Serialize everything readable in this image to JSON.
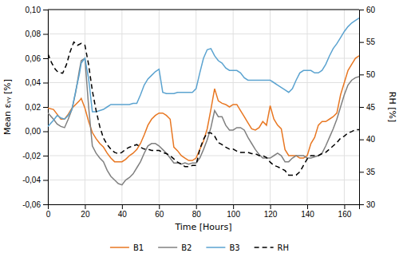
{
  "chart_data": {
    "type": "line",
    "x_label": "Time [Hours]",
    "y_label": "Mean εᵧᵧ [%]",
    "y2_label": "RH [%]",
    "xlim": [
      0,
      168
    ],
    "ylim": [
      -0.06,
      0.1
    ],
    "y2lim": [
      30,
      60
    ],
    "xticks": [
      0,
      20,
      40,
      60,
      80,
      100,
      120,
      140,
      160
    ],
    "yticks": [
      {
        "value": -0.06,
        "label": "-0,06"
      },
      {
        "value": -0.04,
        "label": "-0,04"
      },
      {
        "value": -0.02,
        "label": "-0,02"
      },
      {
        "value": 0,
        "label": "0,00"
      },
      {
        "value": 0.02,
        "label": "0,02"
      },
      {
        "value": 0.04,
        "label": "0,04"
      },
      {
        "value": 0.06,
        "label": "0,06"
      },
      {
        "value": 0.08,
        "label": "0,08"
      },
      {
        "value": 0.1,
        "label": "0,10"
      }
    ],
    "y2ticks": [
      30,
      35,
      40,
      45,
      50,
      55,
      60
    ],
    "grid": true,
    "legend": "bottom",
    "series": [
      {
        "name": "B1",
        "color": "#E87722",
        "axis": "y",
        "line_style": "solid",
        "x": [
          0,
          3,
          5,
          7,
          9,
          11,
          13,
          15,
          17,
          18,
          20,
          22,
          24,
          26,
          28,
          30,
          32,
          34,
          36,
          38,
          40,
          42,
          44,
          46,
          48,
          50,
          52,
          54,
          56,
          58,
          60,
          62,
          64,
          66,
          68,
          70,
          72,
          74,
          76,
          78,
          80,
          82,
          84,
          86,
          88,
          90,
          92,
          94,
          96,
          98,
          100,
          102,
          104,
          106,
          108,
          110,
          112,
          114,
          116,
          118,
          120,
          122,
          124,
          126,
          128,
          130,
          132,
          134,
          136,
          138,
          140,
          142,
          144,
          146,
          148,
          150,
          152,
          154,
          156,
          158,
          160,
          162,
          164,
          166,
          168
        ],
        "values": [
          0.019,
          0.018,
          0.014,
          0.01,
          0.01,
          0.014,
          0.019,
          0.022,
          0.025,
          0.027,
          0.019,
          0.008,
          -0.001,
          -0.006,
          -0.01,
          -0.013,
          -0.018,
          -0.022,
          -0.025,
          -0.025,
          -0.025,
          -0.023,
          -0.02,
          -0.018,
          -0.015,
          -0.01,
          -0.003,
          0.005,
          0.01,
          0.013,
          0.015,
          0.015,
          0.013,
          0.01,
          -0.013,
          -0.016,
          -0.02,
          -0.022,
          -0.024,
          -0.024,
          -0.022,
          -0.015,
          -0.008,
          0.002,
          0.018,
          0.035,
          0.025,
          0.023,
          0.022,
          0.02,
          0.022,
          0.022,
          0.017,
          0.012,
          0.007,
          0.002,
          0.001,
          0.003,
          0.008,
          0.005,
          0.021,
          0.01,
          0.005,
          0.002,
          -0.015,
          -0.02,
          -0.02,
          -0.02,
          -0.022,
          -0.022,
          -0.02,
          -0.01,
          -0.005,
          0.005,
          0.008,
          0.008,
          0.01,
          0.012,
          0.015,
          0.03,
          0.04,
          0.05,
          0.055,
          0.06,
          0.062
        ]
      },
      {
        "name": "B2",
        "color": "#808080",
        "axis": "y",
        "line_style": "solid",
        "x": [
          0,
          3,
          5,
          7,
          9,
          11,
          13,
          15,
          17,
          18,
          20,
          22,
          24,
          26,
          28,
          30,
          32,
          34,
          36,
          38,
          40,
          42,
          44,
          46,
          48,
          50,
          52,
          54,
          56,
          58,
          60,
          62,
          64,
          66,
          68,
          70,
          72,
          74,
          76,
          78,
          80,
          82,
          84,
          86,
          88,
          90,
          92,
          94,
          96,
          98,
          100,
          102,
          104,
          106,
          108,
          110,
          112,
          114,
          116,
          118,
          120,
          122,
          124,
          126,
          128,
          130,
          132,
          134,
          136,
          138,
          140,
          142,
          144,
          146,
          148,
          150,
          152,
          154,
          156,
          158,
          160,
          162,
          164,
          166,
          168
        ],
        "values": [
          0.015,
          0.01,
          0.006,
          0.004,
          0.003,
          0.01,
          0.018,
          0.032,
          0.05,
          0.058,
          0.06,
          0.02,
          -0.012,
          -0.018,
          -0.022,
          -0.025,
          -0.032,
          -0.037,
          -0.04,
          -0.043,
          -0.044,
          -0.04,
          -0.038,
          -0.035,
          -0.03,
          -0.025,
          -0.018,
          -0.012,
          -0.01,
          -0.01,
          -0.012,
          -0.015,
          -0.018,
          -0.022,
          -0.026,
          -0.026,
          -0.027,
          -0.026,
          -0.027,
          -0.026,
          -0.026,
          -0.022,
          -0.015,
          -0.007,
          0.003,
          0.017,
          0.012,
          0.012,
          0.005,
          0.001,
          0.001,
          0.003,
          0.003,
          0.001,
          -0.005,
          -0.01,
          -0.015,
          -0.019,
          -0.022,
          -0.022,
          -0.022,
          -0.02,
          -0.018,
          -0.02,
          -0.025,
          -0.025,
          -0.022,
          -0.02,
          -0.02,
          -0.02,
          -0.022,
          -0.022,
          -0.021,
          -0.02,
          -0.018,
          -0.012,
          -0.005,
          0.002,
          0.01,
          0.02,
          0.03,
          0.038,
          0.042,
          0.044,
          0.045
        ]
      },
      {
        "name": "B3",
        "color": "#5BA3D0",
        "axis": "y",
        "line_style": "solid",
        "x": [
          0,
          3,
          5,
          7,
          9,
          11,
          13,
          15,
          17,
          18,
          20,
          22,
          24,
          26,
          28,
          30,
          32,
          34,
          36,
          38,
          40,
          42,
          44,
          46,
          48,
          50,
          52,
          54,
          56,
          58,
          60,
          62,
          64,
          66,
          68,
          70,
          72,
          74,
          76,
          78,
          80,
          82,
          84,
          86,
          88,
          90,
          92,
          94,
          96,
          98,
          100,
          102,
          104,
          106,
          108,
          110,
          112,
          114,
          116,
          118,
          120,
          122,
          124,
          126,
          128,
          130,
          132,
          134,
          136,
          138,
          140,
          142,
          144,
          146,
          148,
          150,
          152,
          154,
          156,
          158,
          160,
          162,
          164,
          166,
          168
        ],
        "values": [
          0.004,
          0.009,
          0.013,
          0.011,
          0.01,
          0.013,
          0.018,
          0.033,
          0.047,
          0.056,
          0.06,
          0.043,
          0.016,
          0.016,
          0.017,
          0.018,
          0.02,
          0.022,
          0.022,
          0.022,
          0.022,
          0.022,
          0.022,
          0.023,
          0.023,
          0.03,
          0.038,
          0.043,
          0.046,
          0.049,
          0.051,
          0.032,
          0.031,
          0.031,
          0.031,
          0.032,
          0.032,
          0.032,
          0.032,
          0.032,
          0.035,
          0.048,
          0.06,
          0.067,
          0.068,
          0.062,
          0.058,
          0.056,
          0.052,
          0.05,
          0.05,
          0.05,
          0.048,
          0.044,
          0.042,
          0.042,
          0.042,
          0.042,
          0.042,
          0.042,
          0.042,
          0.04,
          0.038,
          0.036,
          0.034,
          0.032,
          0.035,
          0.042,
          0.048,
          0.05,
          0.05,
          0.05,
          0.048,
          0.048,
          0.05,
          0.055,
          0.062,
          0.068,
          0.072,
          0.077,
          0.082,
          0.086,
          0.089,
          0.091,
          0.093
        ]
      },
      {
        "name": "RH",
        "color": "#000000",
        "axis": "y2",
        "line_style": "dashed",
        "x": [
          0,
          2,
          4,
          5,
          6,
          8,
          10,
          12,
          14,
          16,
          18,
          20,
          22,
          24,
          26,
          28,
          30,
          32,
          34,
          36,
          38,
          40,
          42,
          44,
          46,
          48,
          50,
          52,
          54,
          56,
          58,
          60,
          62,
          64,
          66,
          68,
          70,
          72,
          74,
          76,
          78,
          80,
          82,
          84,
          86,
          88,
          90,
          92,
          94,
          96,
          98,
          100,
          102,
          104,
          106,
          108,
          110,
          112,
          114,
          116,
          118,
          120,
          122,
          124,
          126,
          128,
          130,
          132,
          134,
          136,
          138,
          140,
          142,
          144,
          146,
          148,
          150,
          152,
          154,
          156,
          158,
          160,
          162,
          164,
          166,
          168
        ],
        "values": [
          53.2,
          51.8,
          50.8,
          50.5,
          50.3,
          50.2,
          51.5,
          53.5,
          55.0,
          54.5,
          54.8,
          54.5,
          51.5,
          47.5,
          44.5,
          42.0,
          40.2,
          39.2,
          38.5,
          38.0,
          37.8,
          38.0,
          38.5,
          38.8,
          39.0,
          39.2,
          38.8,
          38.5,
          38.5,
          38.3,
          38.3,
          38.3,
          38.0,
          37.8,
          37.5,
          37.0,
          36.5,
          36.2,
          35.8,
          35.8,
          36.0,
          36.0,
          38.5,
          40.0,
          41.0,
          41.0,
          40.5,
          39.5,
          39.2,
          38.8,
          38.5,
          38.5,
          38.2,
          38.0,
          38.0,
          38.0,
          37.8,
          37.8,
          37.5,
          37.5,
          37.2,
          36.5,
          36.0,
          35.8,
          35.5,
          35.2,
          34.5,
          34.5,
          34.5,
          35.0,
          36.0,
          37.0,
          37.5,
          37.5,
          37.5,
          37.8,
          38.0,
          38.5,
          39.0,
          39.5,
          40.2,
          40.5,
          41.0,
          41.2,
          41.5,
          41.5
        ]
      }
    ]
  }
}
